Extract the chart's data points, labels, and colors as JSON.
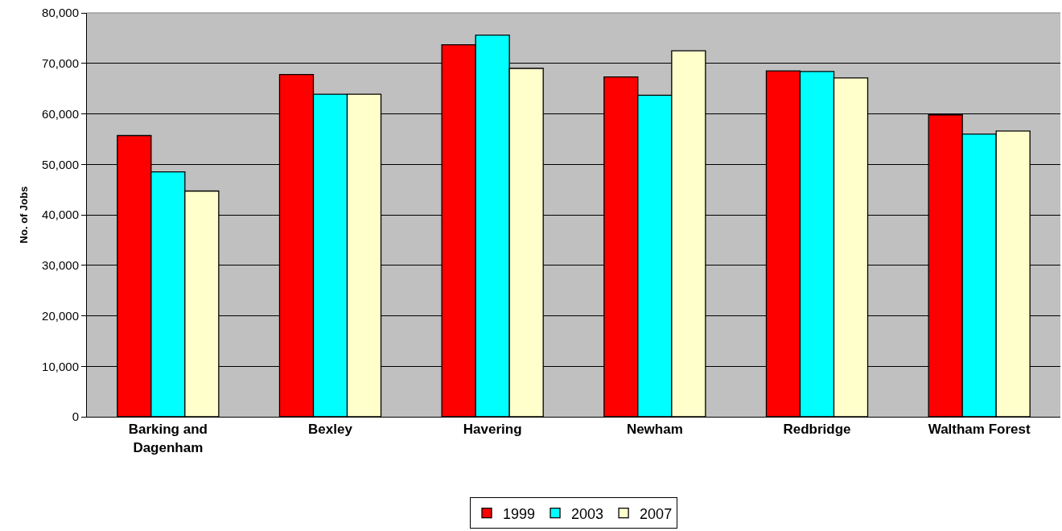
{
  "chart_data": {
    "type": "bar",
    "ylabel": "No. of Jobs",
    "categories": [
      "Barking and\nDagenham",
      "Bexley",
      "Havering",
      "Newham",
      "Redbridge",
      "Waltham Forest"
    ],
    "series": [
      {
        "name": "1999",
        "color": "#ff0000",
        "values": [
          55700,
          67800,
          73700,
          67300,
          68500,
          59800
        ]
      },
      {
        "name": "2003",
        "color": "#00ffff",
        "values": [
          48500,
          63900,
          75600,
          63700,
          68400,
          56000
        ]
      },
      {
        "name": "2007",
        "color": "#ffffcc",
        "values": [
          44700,
          63900,
          69000,
          72500,
          67100,
          56600
        ]
      }
    ],
    "ylim": [
      0,
      80000
    ],
    "yticks": [
      {
        "value": 0,
        "label": "0"
      },
      {
        "value": 10000,
        "label": "10,000"
      },
      {
        "value": 20000,
        "label": "20,000"
      },
      {
        "value": 30000,
        "label": "30,000"
      },
      {
        "value": 40000,
        "label": "40,000"
      },
      {
        "value": 50000,
        "label": "50,000"
      },
      {
        "value": 60000,
        "label": "60,000"
      },
      {
        "value": 70000,
        "label": "70,000"
      },
      {
        "value": 80000,
        "label": "80,000"
      }
    ],
    "grid": "y",
    "legend": "bottom"
  }
}
